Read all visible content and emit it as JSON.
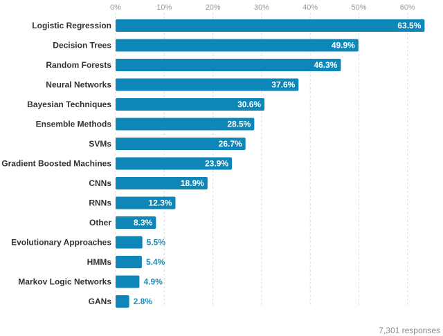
{
  "chart_data": {
    "type": "bar",
    "orientation": "horizontal",
    "categories": [
      "Logistic Regression",
      "Decision Trees",
      "Random Forests",
      "Neural Networks",
      "Bayesian Techniques",
      "Ensemble Methods",
      "SVMs",
      "Gradient Boosted Machines",
      "CNNs",
      "RNNs",
      "Other",
      "Evolutionary Approaches",
      "HMMs",
      "Markov Logic Networks",
      "GANs"
    ],
    "values": [
      63.5,
      49.9,
      46.3,
      37.6,
      30.6,
      28.5,
      26.7,
      23.9,
      18.9,
      12.3,
      8.3,
      5.5,
      5.4,
      4.9,
      2.8
    ],
    "value_labels": [
      "63.5%",
      "49.9%",
      "46.3%",
      "37.6%",
      "30.6%",
      "28.5%",
      "26.7%",
      "23.9%",
      "18.9%",
      "12.3%",
      "8.3%",
      "5.5%",
      "5.4%",
      "4.9%",
      "2.8%"
    ],
    "xlim": [
      0,
      64
    ],
    "ticks": [
      0,
      10,
      20,
      30,
      40,
      50,
      60
    ],
    "tick_labels": [
      "0%",
      "10%",
      "20%",
      "30%",
      "40%",
      "50%",
      "60%"
    ],
    "axis_position": "top",
    "grid": true,
    "title": "",
    "xlabel": "",
    "ylabel": "",
    "footnote": "7,301 responses",
    "colors": {
      "bar": "#0e87b8",
      "outside_label": "#1f8db5",
      "grid": "#d8d8d8"
    }
  }
}
